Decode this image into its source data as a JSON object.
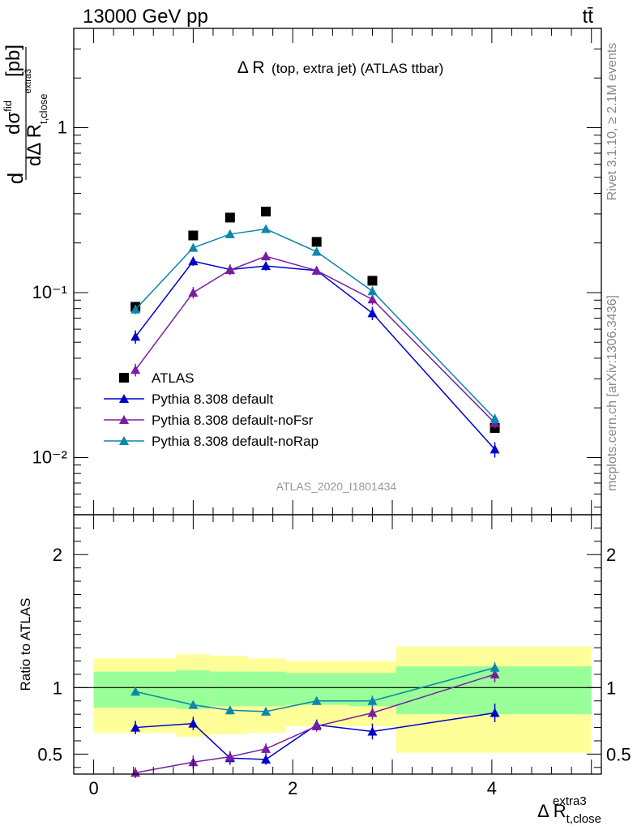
{
  "header": {
    "energy_label": "13000 GeV pp",
    "process_label": "tt̄"
  },
  "side": {
    "rivet_label": "Rivet 3.1.10, ≥ 2.1M events",
    "mcplots_label": "mcplots.cern.ch [arXiv:1306.3436]"
  },
  "chart_data": [
    {
      "type": "line",
      "panel": "main",
      "title": "Δ R (top, extra jet) (ATLAS ttbar)",
      "title_main": "Δ R",
      "title_sub": "(top, extra jet) (ATLAS ttbar)",
      "ylabel": "dσ/dΔR [pb]",
      "ylabel_parts": {
        "d": "d",
        "numerator": "dσ",
        "numerator_sup": "fid",
        "denominator": "dΔ R",
        "denominator_sub": "t,close",
        "denominator_sup": "extra3",
        "unit": "[pb]"
      },
      "yscale": "log",
      "xlim": [
        -0.2,
        5.1
      ],
      "ylim": [
        0.0045,
        4.0
      ],
      "ytick_labels": [
        "10⁻²",
        "10⁻¹",
        "1"
      ],
      "ytick_values": [
        0.01,
        0.1,
        1
      ],
      "analysis_label": "ATLAS_2020_I1801434",
      "legend_position": "lower-left",
      "series": [
        {
          "name": "ATLAS",
          "kind": "data",
          "color": "#000000",
          "marker": "square",
          "x": [
            0.42,
            1.0,
            1.37,
            1.73,
            2.24,
            2.8,
            4.03
          ],
          "y": [
            0.082,
            0.222,
            0.285,
            0.31,
            0.203,
            0.118,
            0.0151
          ]
        },
        {
          "name": "Pythia 8.308 default",
          "kind": "mc",
          "color": "#0000cc",
          "marker": "triangle",
          "x": [
            0.42,
            1.0,
            1.37,
            1.73,
            2.24,
            2.8,
            4.03
          ],
          "y": [
            0.054,
            0.155,
            0.138,
            0.145,
            0.136,
            0.075,
            0.0112
          ],
          "err": [
            0.005,
            0.01,
            0.01,
            0.009,
            0.008,
            0.007,
            0.0012
          ]
        },
        {
          "name": "Pythia 8.308 default-noFsr",
          "kind": "mc",
          "color": "#7a1ea1",
          "marker": "triangle",
          "x": [
            0.42,
            1.0,
            1.37,
            1.73,
            2.24,
            2.8,
            4.03
          ],
          "y": [
            0.034,
            0.1,
            0.137,
            0.166,
            0.136,
            0.091,
            0.0162
          ],
          "err": [
            0.003,
            0.008,
            0.009,
            0.01,
            0.008,
            0.007,
            0.0012
          ]
        },
        {
          "name": "Pythia 8.308 default-noRap",
          "kind": "mc",
          "color": "#0a87aa",
          "marker": "triangle",
          "x": [
            0.42,
            1.0,
            1.37,
            1.73,
            2.24,
            2.8,
            4.03
          ],
          "y": [
            0.079,
            0.187,
            0.226,
            0.243,
            0.177,
            0.102,
            0.0172
          ],
          "err": [
            0.005,
            0.01,
            0.01,
            0.01,
            0.009,
            0.007,
            0.0012
          ]
        }
      ]
    },
    {
      "type": "line",
      "panel": "ratio",
      "ylabel": "Ratio to ATLAS",
      "xlabel": "Δ R",
      "xlabel_sub": "t,close",
      "xlabel_sup": "extra3",
      "xlim": [
        -0.2,
        5.1
      ],
      "ylim": [
        0.35,
        2.3
      ],
      "xtick_labels": [
        "0",
        "2",
        "4"
      ],
      "xtick_values": [
        0,
        2,
        4
      ],
      "ytick_labels": [
        "0.5",
        "1",
        "2"
      ],
      "ytick_values": [
        0.5,
        1,
        2
      ],
      "bands": {
        "colors": {
          "inner": "#99ff99",
          "outer": "#ffff99"
        },
        "bins": [
          {
            "x0": 0.0,
            "x1": 0.83,
            "inner": [
              0.85,
              1.12
            ],
            "outer": [
              0.66,
              1.22
            ]
          },
          {
            "x0": 0.83,
            "x1": 1.17,
            "inner": [
              0.84,
              1.13
            ],
            "outer": [
              0.63,
              1.25
            ]
          },
          {
            "x0": 1.17,
            "x1": 1.55,
            "inner": [
              0.86,
              1.12
            ],
            "outer": [
              0.65,
              1.24
            ]
          },
          {
            "x0": 1.55,
            "x1": 1.93,
            "inner": [
              0.86,
              1.12
            ],
            "outer": [
              0.66,
              1.22
            ]
          },
          {
            "x0": 1.93,
            "x1": 2.56,
            "inner": [
              0.87,
              1.11
            ],
            "outer": [
              0.71,
              1.2
            ]
          },
          {
            "x0": 2.56,
            "x1": 3.04,
            "inner": [
              0.86,
              1.11
            ],
            "outer": [
              0.71,
              1.2
            ]
          },
          {
            "x0": 3.04,
            "x1": 5.0,
            "inner": [
              0.8,
              1.16
            ],
            "outer": [
              0.51,
              1.31
            ]
          }
        ]
      },
      "series": [
        {
          "name": "Pythia 8.308 default",
          "color": "#0000cc",
          "x": [
            0.42,
            1.0,
            1.37,
            1.73,
            2.24,
            2.8,
            4.03
          ],
          "y": [
            0.7,
            0.73,
            0.47,
            0.46,
            0.72,
            0.67,
            0.81
          ],
          "err": [
            0.05,
            0.05,
            0.05,
            0.04,
            0.04,
            0.06,
            0.07
          ]
        },
        {
          "name": "Pythia 8.308 default-noFsr",
          "color": "#7a1ea1",
          "x": [
            0.42,
            1.0,
            1.37,
            1.73,
            2.24,
            2.8,
            4.03
          ],
          "y": [
            0.36,
            0.44,
            0.48,
            0.54,
            0.71,
            0.81,
            1.1
          ],
          "err": [
            0.04,
            0.05,
            0.04,
            0.04,
            0.04,
            0.05,
            0.06
          ]
        },
        {
          "name": "Pythia 8.308 default-noRap",
          "color": "#0a87aa",
          "x": [
            0.42,
            1.0,
            1.37,
            1.73,
            2.24,
            2.8,
            4.03
          ],
          "y": [
            0.97,
            0.87,
            0.83,
            0.82,
            0.9,
            0.9,
            1.15
          ],
          "err": [
            0.03,
            0.03,
            0.03,
            0.03,
            0.03,
            0.04,
            0.04
          ]
        }
      ]
    }
  ]
}
